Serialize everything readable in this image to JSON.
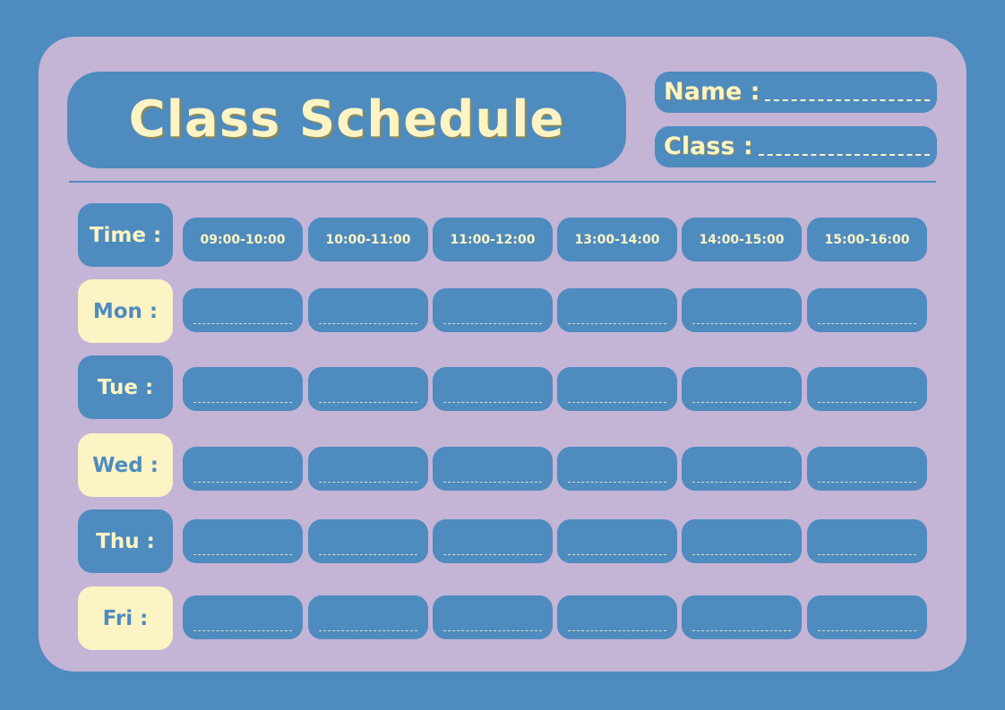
{
  "title": "Class Schedule",
  "fields": {
    "name_label": "Name :",
    "class_label": "Class :"
  },
  "time_label": "Time :",
  "times": [
    "09:00-10:00",
    "10:00-11:00",
    "11:00-12:00",
    "13:00-14:00",
    "14:00-15:00",
    "15:00-16:00"
  ],
  "days": [
    {
      "label": "Mon :",
      "style": "cream"
    },
    {
      "label": "Tue :",
      "style": "blue"
    },
    {
      "label": "Wed :",
      "style": "cream"
    },
    {
      "label": "Thu :",
      "style": "blue"
    },
    {
      "label": "Fri :",
      "style": "cream"
    }
  ],
  "colors": {
    "background": "#4e8bbf",
    "card": "#c4b4d6",
    "cream": "#fcf4c4"
  }
}
